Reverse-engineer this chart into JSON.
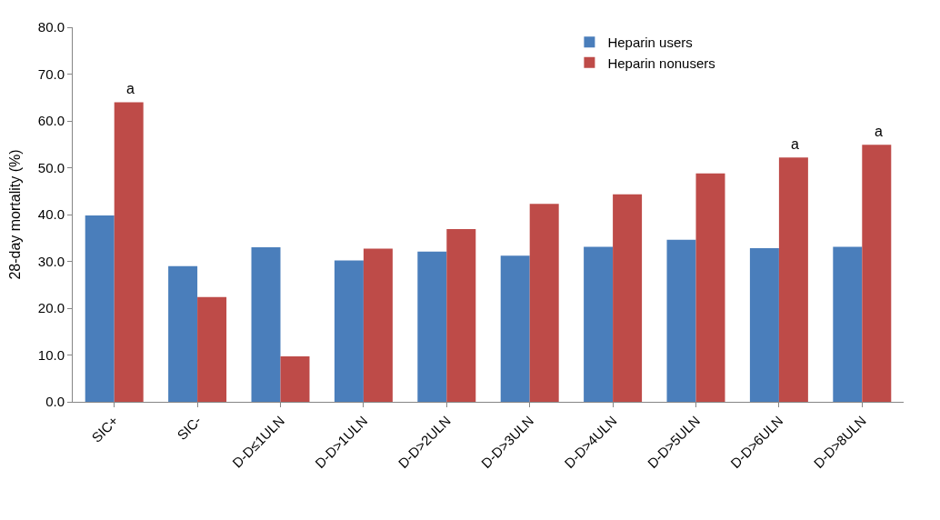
{
  "chart_data": {
    "type": "bar",
    "ylabel": "28-day mortality (%)",
    "categories": [
      "SIC+",
      "SIC-",
      "D-D≤1ULN",
      "D-D>1ULN",
      "D-D>2ULN",
      "D-D>3ULN",
      "D-D>4ULN",
      "D-D>5ULN",
      "D-D>6ULN",
      "D-D>8ULN"
    ],
    "series": [
      {
        "name": "Heparin users",
        "color": "#4a7ebb",
        "values": [
          39.8,
          29.0,
          33.0,
          30.2,
          32.1,
          31.2,
          33.1,
          34.6,
          32.8,
          33.1
        ]
      },
      {
        "name": "Heparin nonusers",
        "color": "#be4b48",
        "values": [
          64.0,
          22.4,
          9.7,
          32.7,
          36.9,
          42.3,
          44.3,
          48.8,
          52.2,
          54.9
        ]
      }
    ],
    "ylim": [
      0,
      80
    ],
    "yticks": [
      {
        "value": 0,
        "label": "0.0"
      },
      {
        "value": 10,
        "label": "10.0"
      },
      {
        "value": 20,
        "label": "20.0"
      },
      {
        "value": 30,
        "label": "30.0"
      },
      {
        "value": 40,
        "label": "40.0"
      },
      {
        "value": 50,
        "label": "50.0"
      },
      {
        "value": 60,
        "label": "60.0"
      },
      {
        "value": 70,
        "label": "70.0"
      },
      {
        "value": 80,
        "label": "80.0"
      }
    ],
    "annotations": [
      {
        "text": "a",
        "x": "SIC+",
        "y": 64.0
      },
      {
        "text": "a",
        "x": "D-D>6ULN",
        "y": 52.2
      },
      {
        "text": "a",
        "x": "D-D>8ULN",
        "y": 54.9
      }
    ],
    "legend": "top right"
  }
}
